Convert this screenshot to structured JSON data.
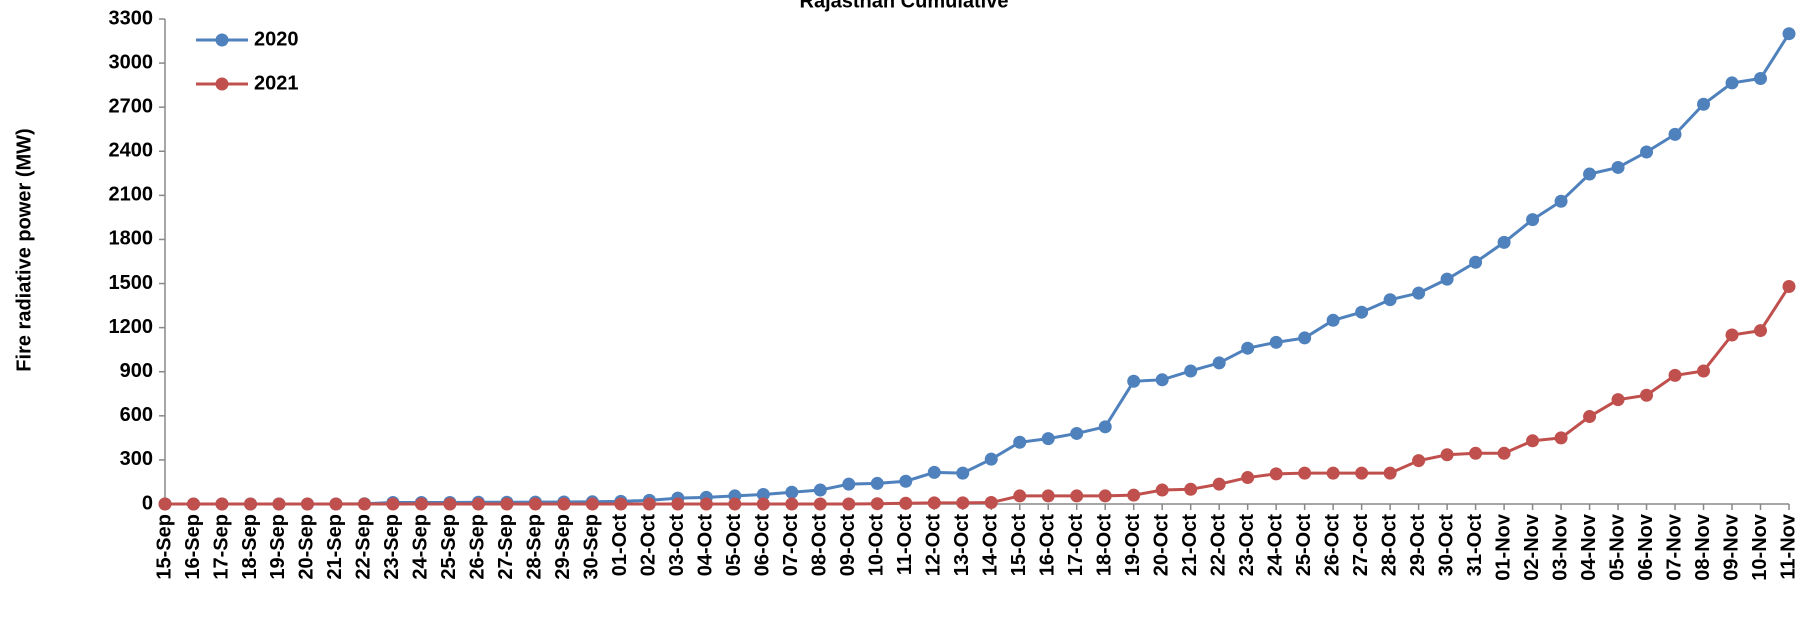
{
  "chart_data": {
    "type": "line",
    "title": "Rajasthan Cumulative",
    "y_label": "Fire radiative power (MW)",
    "categories": [
      "15-Sep",
      "16-Sep",
      "17-Sep",
      "18-Sep",
      "19-Sep",
      "20-Sep",
      "21-Sep",
      "22-Sep",
      "23-Sep",
      "24-Sep",
      "25-Sep",
      "26-Sep",
      "27-Sep",
      "28-Sep",
      "29-Sep",
      "30-Sep",
      "01-Oct",
      "02-Oct",
      "03-Oct",
      "04-Oct",
      "05-Oct",
      "06-Oct",
      "07-Oct",
      "08-Oct",
      "09-Oct",
      "10-Oct",
      "11-Oct",
      "12-Oct",
      "13-Oct",
      "14-Oct",
      "15-Oct",
      "16-Oct",
      "17-Oct",
      "18-Oct",
      "19-Oct",
      "20-Oct",
      "21-Oct",
      "22-Oct",
      "23-Oct",
      "24-Oct",
      "25-Oct",
      "26-Oct",
      "27-Oct",
      "28-Oct",
      "29-Oct",
      "30-Oct",
      "31-Oct",
      "01-Nov",
      "02-Nov",
      "03-Nov",
      "04-Nov",
      "05-Nov",
      "06-Nov",
      "07-Nov",
      "08-Nov",
      "09-Nov",
      "10-Nov",
      "11-Nov"
    ],
    "series": [
      {
        "name": "2020",
        "color": "#4f81bd",
        "values": [
          0,
          0,
          0,
          0,
          0,
          0,
          0,
          2,
          10,
          10,
          10,
          12,
          12,
          13,
          14,
          15,
          18,
          25,
          40,
          45,
          55,
          65,
          80,
          95,
          135,
          140,
          155,
          215,
          210,
          305,
          420,
          445,
          480,
          525,
          835,
          845,
          905,
          960,
          1060,
          1100,
          1130,
          1250,
          1305,
          1390,
          1435,
          1530,
          1645,
          1780,
          1935,
          2060,
          2245,
          2290,
          2395,
          2515,
          2720,
          2865,
          2895,
          3200
        ]
      },
      {
        "name": "2021",
        "color": "#c0504d",
        "values": [
          0,
          0,
          0,
          0,
          0,
          0,
          0,
          0,
          0,
          0,
          0,
          0,
          0,
          0,
          0,
          0,
          0,
          0,
          0,
          0,
          0,
          0,
          0,
          0,
          0,
          2,
          5,
          8,
          8,
          10,
          55,
          55,
          55,
          55,
          60,
          95,
          100,
          135,
          180,
          205,
          210,
          210,
          210,
          210,
          295,
          335,
          345,
          345,
          430,
          450,
          595,
          710,
          740,
          875,
          905,
          1150,
          1180,
          1480
        ]
      }
    ],
    "ylim": [
      0,
      3300
    ],
    "yticks": [
      0,
      300,
      600,
      900,
      1200,
      1500,
      1800,
      2100,
      2400,
      2700,
      3000,
      3300
    ],
    "legend": "upper left"
  }
}
